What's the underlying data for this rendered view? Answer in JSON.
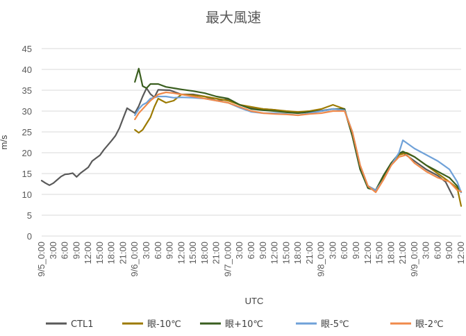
{
  "chart_data": {
    "type": "line",
    "title": "最大風速",
    "xlabel": "UTC",
    "ylabel": "m/s",
    "ylim": [
      0,
      45
    ],
    "yticks": [
      0,
      5,
      10,
      15,
      20,
      25,
      30,
      35,
      40,
      45
    ],
    "grid": true,
    "legend_position": "bottom",
    "x_unit": "hours since 9/5_0:00",
    "x_range": [
      0,
      108
    ],
    "x_ticks": [
      {
        "x": 0,
        "label": "9/5_0:00"
      },
      {
        "x": 3,
        "label": "3:00"
      },
      {
        "x": 6,
        "label": "6:00"
      },
      {
        "x": 9,
        "label": "9:00"
      },
      {
        "x": 12,
        "label": "12:00"
      },
      {
        "x": 15,
        "label": "15:00"
      },
      {
        "x": 18,
        "label": "18:00"
      },
      {
        "x": 21,
        "label": "21:00"
      },
      {
        "x": 24,
        "label": "9/6_0:00"
      },
      {
        "x": 27,
        "label": "3:00"
      },
      {
        "x": 30,
        "label": "6:00"
      },
      {
        "x": 33,
        "label": "9:00"
      },
      {
        "x": 36,
        "label": "12:00"
      },
      {
        "x": 39,
        "label": "15:00"
      },
      {
        "x": 42,
        "label": "18:00"
      },
      {
        "x": 45,
        "label": "21:00"
      },
      {
        "x": 48,
        "label": "9/7_0:00"
      },
      {
        "x": 51,
        "label": "3:00"
      },
      {
        "x": 54,
        "label": "6:00"
      },
      {
        "x": 57,
        "label": "9:00"
      },
      {
        "x": 60,
        "label": "12:00"
      },
      {
        "x": 63,
        "label": "15:00"
      },
      {
        "x": 66,
        "label": "18:00"
      },
      {
        "x": 69,
        "label": "21:00"
      },
      {
        "x": 72,
        "label": "9/8_0:00"
      },
      {
        "x": 75,
        "label": "3:00"
      },
      {
        "x": 78,
        "label": "6:00"
      },
      {
        "x": 81,
        "label": "9:00"
      },
      {
        "x": 84,
        "label": "12:00"
      },
      {
        "x": 87,
        "label": "15:00"
      },
      {
        "x": 90,
        "label": "18:00"
      },
      {
        "x": 93,
        "label": "21:00"
      },
      {
        "x": 96,
        "label": "9/9_0:00"
      },
      {
        "x": 99,
        "label": "3:00"
      },
      {
        "x": 102,
        "label": "6:00"
      },
      {
        "x": 105,
        "label": "9:00"
      },
      {
        "x": 108,
        "label": "12:00"
      }
    ],
    "series": [
      {
        "name": "CTL1",
        "color": "#595959",
        "points": [
          [
            0,
            13.3
          ],
          [
            1,
            12.7
          ],
          [
            2,
            12.2
          ],
          [
            3,
            12.7
          ],
          [
            4,
            13.5
          ],
          [
            5,
            14.3
          ],
          [
            6,
            14.8
          ],
          [
            7,
            14.9
          ],
          [
            8,
            15.1
          ],
          [
            9,
            14.2
          ],
          [
            10,
            15.1
          ],
          [
            11,
            15.8
          ],
          [
            12,
            16.5
          ],
          [
            13,
            18
          ],
          [
            14,
            18.7
          ],
          [
            15,
            19.4
          ],
          [
            16,
            20.7
          ],
          [
            17,
            21.8
          ],
          [
            18,
            22.9
          ],
          [
            19,
            24.1
          ],
          [
            20,
            25.9
          ],
          [
            21,
            28.3
          ],
          [
            22,
            30.7
          ],
          [
            23,
            30.1
          ],
          [
            24,
            29.5
          ],
          [
            25,
            31.2
          ],
          [
            26,
            33.5
          ],
          [
            27,
            35.5
          ],
          [
            28,
            34.1
          ],
          [
            29,
            33.3
          ],
          [
            30,
            35.1
          ],
          [
            33,
            35
          ],
          [
            36,
            34
          ],
          [
            39,
            34
          ],
          [
            42,
            33.5
          ],
          [
            45,
            32.5
          ],
          [
            48,
            32.8
          ],
          [
            51,
            31.5
          ],
          [
            54,
            30.8
          ],
          [
            57,
            30.5
          ],
          [
            60,
            30.3
          ],
          [
            63,
            29.8
          ],
          [
            66,
            29.6
          ],
          [
            69,
            29.9
          ],
          [
            72,
            30.1
          ],
          [
            75,
            30.5
          ],
          [
            78,
            30.3
          ],
          [
            80,
            24
          ],
          [
            82,
            16
          ],
          [
            84,
            12
          ],
          [
            86,
            11
          ],
          [
            88,
            14.5
          ],
          [
            90,
            17.5
          ],
          [
            92,
            19.5
          ],
          [
            93,
            20
          ],
          [
            96,
            18
          ],
          [
            99,
            16
          ],
          [
            102,
            14.5
          ],
          [
            104,
            13
          ],
          [
            106,
            9.3
          ]
        ]
      },
      {
        "name": "眼-10℃",
        "color": "#9c7a00",
        "points": [
          [
            24,
            25.5
          ],
          [
            25,
            24.8
          ],
          [
            26,
            25.5
          ],
          [
            27,
            27
          ],
          [
            28,
            28.5
          ],
          [
            29,
            31
          ],
          [
            30,
            33
          ],
          [
            32,
            32
          ],
          [
            34,
            32.5
          ],
          [
            36,
            34
          ],
          [
            39,
            33.8
          ],
          [
            42,
            33.5
          ],
          [
            45,
            33
          ],
          [
            48,
            32.5
          ],
          [
            51,
            31.5
          ],
          [
            54,
            31
          ],
          [
            57,
            30.5
          ],
          [
            60,
            30.3
          ],
          [
            63,
            30
          ],
          [
            66,
            29.8
          ],
          [
            69,
            30
          ],
          [
            72,
            30.5
          ],
          [
            75,
            31.5
          ],
          [
            78,
            30.5
          ],
          [
            80,
            24
          ],
          [
            82,
            16.5
          ],
          [
            84,
            12
          ],
          [
            86,
            11
          ],
          [
            88,
            14
          ],
          [
            90,
            17
          ],
          [
            92,
            19.5
          ],
          [
            94,
            20
          ],
          [
            96,
            19
          ],
          [
            99,
            17
          ],
          [
            102,
            15
          ],
          [
            105,
            13
          ],
          [
            107,
            11.5
          ],
          [
            108,
            7.2
          ]
        ]
      },
      {
        "name": "眼+10℃",
        "color": "#3a5e1f",
        "points": [
          [
            24,
            37
          ],
          [
            25,
            40.2
          ],
          [
            26,
            36
          ],
          [
            27,
            35.5
          ],
          [
            28,
            36.5
          ],
          [
            30,
            36.5
          ],
          [
            32,
            35.8
          ],
          [
            34,
            35.5
          ],
          [
            36,
            35.2
          ],
          [
            39,
            34.8
          ],
          [
            42,
            34.3
          ],
          [
            45,
            33.5
          ],
          [
            48,
            33
          ],
          [
            51,
            31.5
          ],
          [
            54,
            30.5
          ],
          [
            57,
            30.2
          ],
          [
            60,
            30
          ],
          [
            63,
            29.7
          ],
          [
            66,
            29.5
          ],
          [
            69,
            29.8
          ],
          [
            72,
            30
          ],
          [
            75,
            30.5
          ],
          [
            78,
            30.5
          ],
          [
            80,
            24
          ],
          [
            82,
            16
          ],
          [
            84,
            11.5
          ],
          [
            86,
            11
          ],
          [
            88,
            14.5
          ],
          [
            90,
            17.5
          ],
          [
            92,
            19.8
          ],
          [
            93,
            20.3
          ],
          [
            96,
            19
          ],
          [
            99,
            17
          ],
          [
            102,
            15.5
          ],
          [
            105,
            14
          ],
          [
            107,
            12
          ],
          [
            108,
            10.5
          ]
        ]
      },
      {
        "name": "眼-5℃",
        "color": "#6fa1d8",
        "points": [
          [
            24,
            29
          ],
          [
            25,
            30.5
          ],
          [
            26,
            31.5
          ],
          [
            27,
            32
          ],
          [
            28,
            33
          ],
          [
            30,
            33.5
          ],
          [
            32,
            33.5
          ],
          [
            34,
            33.2
          ],
          [
            36,
            33.3
          ],
          [
            39,
            33.2
          ],
          [
            42,
            33
          ],
          [
            45,
            32.5
          ],
          [
            48,
            32
          ],
          [
            51,
            30.8
          ],
          [
            54,
            29.8
          ],
          [
            57,
            29.5
          ],
          [
            60,
            29.5
          ],
          [
            63,
            29.3
          ],
          [
            66,
            29
          ],
          [
            69,
            29.5
          ],
          [
            72,
            30
          ],
          [
            75,
            30.5
          ],
          [
            78,
            30.2
          ],
          [
            80,
            25
          ],
          [
            82,
            17
          ],
          [
            84,
            12
          ],
          [
            86,
            11
          ],
          [
            88,
            13.5
          ],
          [
            90,
            17
          ],
          [
            92,
            20
          ],
          [
            93,
            23
          ],
          [
            96,
            21
          ],
          [
            99,
            19.5
          ],
          [
            102,
            18
          ],
          [
            105,
            16
          ],
          [
            107,
            13
          ],
          [
            108,
            10.5
          ]
        ]
      },
      {
        "name": "眼-2℃",
        "color": "#f08a4b",
        "points": [
          [
            24,
            28
          ],
          [
            25,
            29.5
          ],
          [
            26,
            30.5
          ],
          [
            27,
            31.5
          ],
          [
            28,
            32.5
          ],
          [
            30,
            34
          ],
          [
            32,
            34.5
          ],
          [
            34,
            34.3
          ],
          [
            36,
            34
          ],
          [
            39,
            33.5
          ],
          [
            42,
            33
          ],
          [
            45,
            32.5
          ],
          [
            48,
            32
          ],
          [
            51,
            31
          ],
          [
            54,
            30
          ],
          [
            57,
            29.5
          ],
          [
            60,
            29.3
          ],
          [
            63,
            29.2
          ],
          [
            66,
            29
          ],
          [
            69,
            29.3
          ],
          [
            72,
            29.5
          ],
          [
            75,
            30
          ],
          [
            78,
            30
          ],
          [
            80,
            25
          ],
          [
            82,
            17
          ],
          [
            84,
            12
          ],
          [
            86,
            10.5
          ],
          [
            88,
            13.5
          ],
          [
            90,
            17
          ],
          [
            92,
            19
          ],
          [
            94,
            19.5
          ],
          [
            96,
            17.5
          ],
          [
            99,
            15.5
          ],
          [
            102,
            14
          ],
          [
            105,
            13
          ],
          [
            107,
            11
          ],
          [
            108,
            10.7
          ]
        ]
      }
    ]
  }
}
